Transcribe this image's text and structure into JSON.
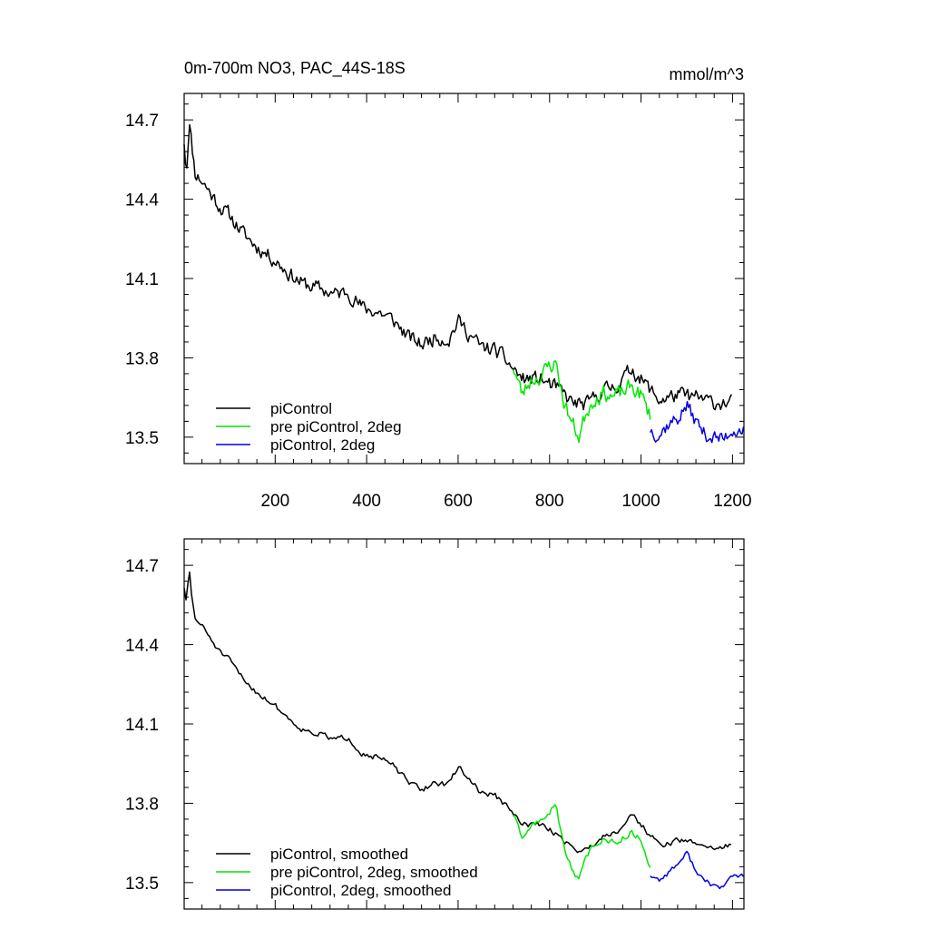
{
  "chart_data": [
    {
      "type": "line",
      "title": "0m-700m NO3, PAC_44S-18S",
      "units": "mmol/m^3",
      "xlim": [
        1,
        1225
      ],
      "ylim": [
        13.4,
        14.8
      ],
      "x_ticks": [
        200,
        400,
        600,
        800,
        1000,
        1200
      ],
      "x_tick_labels": [
        "200",
        "400",
        "600",
        "800",
        "1000",
        "1200"
      ],
      "y_ticks": [
        13.5,
        13.8,
        14.1,
        14.4,
        14.7
      ],
      "y_tick_labels": [
        "13.5",
        "13.8",
        "14.1",
        "14.4",
        "14.7"
      ],
      "grid": false,
      "legend_position": "bottom-left",
      "series": [
        {
          "name": "piControl",
          "color": "#000000",
          "x_start": 1,
          "x_end": 1200,
          "sample_step": 3,
          "noise_amp": 0.045,
          "seed": 11,
          "anchors": [
            [
              1,
              14.62
            ],
            [
              6,
              14.5
            ],
            [
              12,
              14.7
            ],
            [
              18,
              14.6
            ],
            [
              25,
              14.5
            ],
            [
              40,
              14.47
            ],
            [
              60,
              14.42
            ],
            [
              80,
              14.37
            ],
            [
              100,
              14.34
            ],
            [
              130,
              14.27
            ],
            [
              160,
              14.22
            ],
            [
              200,
              14.17
            ],
            [
              230,
              14.12
            ],
            [
              260,
              14.08
            ],
            [
              300,
              14.06
            ],
            [
              330,
              14.04
            ],
            [
              360,
              14.05
            ],
            [
              390,
              13.99
            ],
            [
              430,
              13.97
            ],
            [
              460,
              13.94
            ],
            [
              490,
              13.88
            ],
            [
              520,
              13.85
            ],
            [
              550,
              13.88
            ],
            [
              580,
              13.87
            ],
            [
              600,
              13.94
            ],
            [
              620,
              13.9
            ],
            [
              650,
              13.84
            ],
            [
              680,
              13.83
            ],
            [
              700,
              13.8
            ],
            [
              740,
              13.72
            ],
            [
              780,
              13.72
            ],
            [
              820,
              13.68
            ],
            [
              850,
              13.63
            ],
            [
              880,
              13.62
            ],
            [
              910,
              13.67
            ],
            [
              950,
              13.7
            ],
            [
              980,
              13.76
            ],
            [
              1000,
              13.72
            ],
            [
              1040,
              13.64
            ],
            [
              1080,
              13.66
            ],
            [
              1120,
              13.65
            ],
            [
              1160,
              13.63
            ],
            [
              1200,
              13.63
            ]
          ]
        },
        {
          "name": "pre piControl, 2deg",
          "color": "#00e600",
          "x_start": 720,
          "x_end": 1020,
          "sample_step": 3,
          "noise_amp": 0.05,
          "seed": 23,
          "anchors": [
            [
              720,
              13.77
            ],
            [
              740,
              13.66
            ],
            [
              760,
              13.72
            ],
            [
              780,
              13.73
            ],
            [
              800,
              13.77
            ],
            [
              815,
              13.78
            ],
            [
              830,
              13.64
            ],
            [
              850,
              13.55
            ],
            [
              865,
              13.5
            ],
            [
              880,
              13.6
            ],
            [
              900,
              13.65
            ],
            [
              920,
              13.67
            ],
            [
              940,
              13.65
            ],
            [
              960,
              13.67
            ],
            [
              980,
              13.69
            ],
            [
              1000,
              13.66
            ],
            [
              1020,
              13.58
            ]
          ]
        },
        {
          "name": "piControl, 2deg",
          "color": "#0000e6",
          "x_start": 1020,
          "x_end": 1225,
          "sample_step": 3,
          "noise_amp": 0.045,
          "seed": 37,
          "anchors": [
            [
              1020,
              13.53
            ],
            [
              1040,
              13.51
            ],
            [
              1060,
              13.55
            ],
            [
              1080,
              13.57
            ],
            [
              1100,
              13.62
            ],
            [
              1120,
              13.56
            ],
            [
              1140,
              13.51
            ],
            [
              1160,
              13.5
            ],
            [
              1180,
              13.49
            ],
            [
              1200,
              13.53
            ],
            [
              1225,
              13.53
            ]
          ]
        }
      ]
    },
    {
      "type": "line",
      "title": "",
      "xlim": [
        1,
        1225
      ],
      "ylim": [
        13.4,
        14.8
      ],
      "y_ticks": [
        13.5,
        13.8,
        14.1,
        14.4,
        14.7
      ],
      "y_tick_labels": [
        "13.5",
        "13.8",
        "14.1",
        "14.4",
        "14.7"
      ],
      "grid": false,
      "legend_position": "bottom-left",
      "series": [
        {
          "name": "piControl, smoothed",
          "color": "#000000",
          "x_start": 1,
          "x_end": 1200,
          "sample_step": 4,
          "noise_amp": 0.018,
          "seed": 51,
          "anchors": [
            [
              1,
              14.62
            ],
            [
              6,
              14.55
            ],
            [
              12,
              14.69
            ],
            [
              18,
              14.57
            ],
            [
              25,
              14.5
            ],
            [
              40,
              14.47
            ],
            [
              60,
              14.42
            ],
            [
              80,
              14.37
            ],
            [
              100,
              14.34
            ],
            [
              130,
              14.27
            ],
            [
              160,
              14.22
            ],
            [
              200,
              14.17
            ],
            [
              230,
              14.12
            ],
            [
              260,
              14.08
            ],
            [
              300,
              14.06
            ],
            [
              330,
              14.04
            ],
            [
              360,
              14.05
            ],
            [
              390,
              13.99
            ],
            [
              430,
              13.97
            ],
            [
              460,
              13.94
            ],
            [
              490,
              13.88
            ],
            [
              520,
              13.85
            ],
            [
              550,
              13.88
            ],
            [
              580,
              13.87
            ],
            [
              600,
              13.94
            ],
            [
              620,
              13.9
            ],
            [
              650,
              13.84
            ],
            [
              680,
              13.83
            ],
            [
              700,
              13.8
            ],
            [
              740,
              13.72
            ],
            [
              780,
              13.72
            ],
            [
              820,
              13.68
            ],
            [
              850,
              13.63
            ],
            [
              880,
              13.62
            ],
            [
              910,
              13.67
            ],
            [
              950,
              13.7
            ],
            [
              980,
              13.76
            ],
            [
              1000,
              13.72
            ],
            [
              1040,
              13.64
            ],
            [
              1080,
              13.66
            ],
            [
              1120,
              13.65
            ],
            [
              1160,
              13.63
            ],
            [
              1200,
              13.64
            ]
          ]
        },
        {
          "name": "pre piControl, 2deg, smoothed",
          "color": "#00e600",
          "x_start": 720,
          "x_end": 1020,
          "sample_step": 4,
          "noise_amp": 0.02,
          "seed": 63,
          "anchors": [
            [
              720,
              13.76
            ],
            [
              740,
              13.66
            ],
            [
              760,
              13.72
            ],
            [
              780,
              13.73
            ],
            [
              800,
              13.77
            ],
            [
              815,
              13.79
            ],
            [
              830,
              13.64
            ],
            [
              850,
              13.55
            ],
            [
              865,
              13.51
            ],
            [
              880,
              13.6
            ],
            [
              900,
              13.65
            ],
            [
              920,
              13.67
            ],
            [
              940,
              13.65
            ],
            [
              960,
              13.67
            ],
            [
              980,
              13.69
            ],
            [
              1000,
              13.66
            ],
            [
              1020,
              13.56
            ]
          ]
        },
        {
          "name": "piControl, 2deg, smoothed",
          "color": "#0000e6",
          "x_start": 1020,
          "x_end": 1225,
          "sample_step": 4,
          "noise_amp": 0.018,
          "seed": 77,
          "anchors": [
            [
              1020,
              13.53
            ],
            [
              1040,
              13.51
            ],
            [
              1060,
              13.54
            ],
            [
              1080,
              13.57
            ],
            [
              1100,
              13.61
            ],
            [
              1120,
              13.55
            ],
            [
              1140,
              13.5
            ],
            [
              1160,
              13.49
            ],
            [
              1180,
              13.48
            ],
            [
              1200,
              13.53
            ],
            [
              1225,
              13.52
            ]
          ]
        }
      ]
    }
  ]
}
